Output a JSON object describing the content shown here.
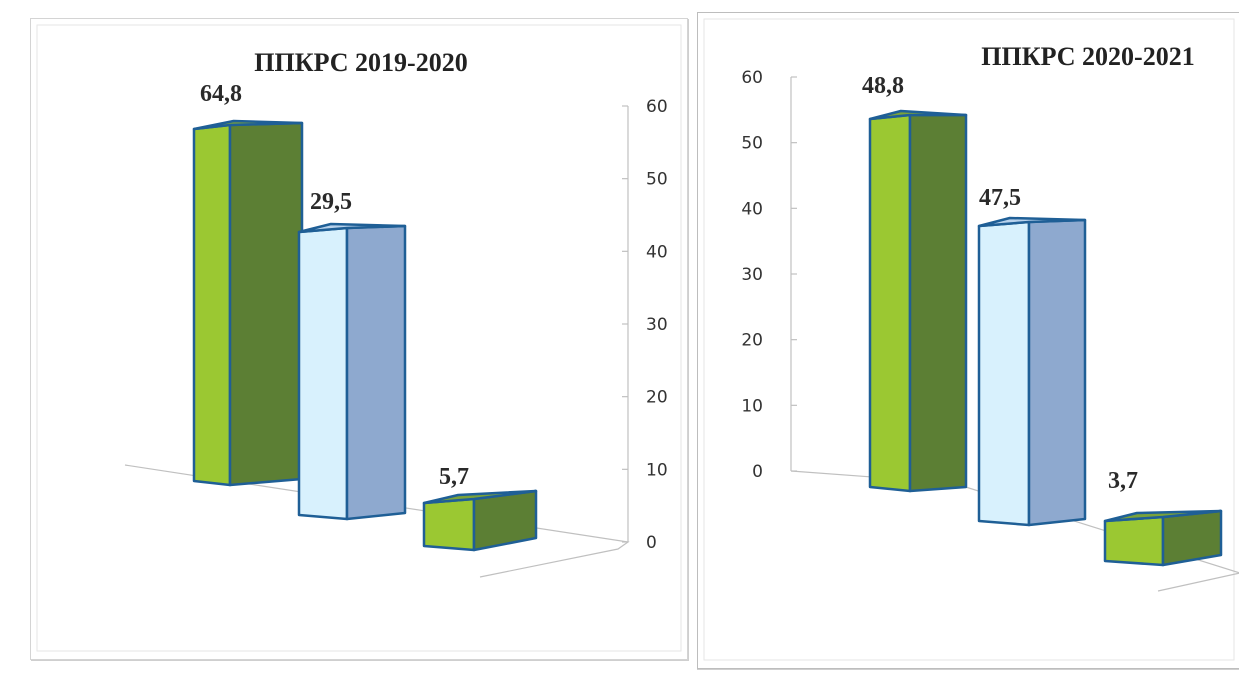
{
  "colors": {
    "green_front": "#9bc832",
    "green_side": "#5c7f34",
    "green_top": "#7aa23a",
    "blue_front": "#d8f1fd",
    "blue_side": "#8ea9cf",
    "blue_top": "#b8d2ec",
    "edge": "#1f5f96",
    "axis": "#c0c0c0"
  },
  "chart_data": [
    {
      "type": "bar",
      "title": "ППКРС 2019-2020",
      "values": [
        64.8,
        29.5,
        5.7
      ],
      "data_labels": [
        "64,8",
        "29,5",
        "5,7"
      ],
      "bar_colors": [
        "green",
        "blue",
        "green"
      ],
      "ylim": [
        0,
        60
      ],
      "yticks": [
        "0",
        "10",
        "20",
        "30",
        "40",
        "50",
        "60"
      ],
      "y_axis_side": "right",
      "projection": "3d",
      "grid": false,
      "legend": "none"
    },
    {
      "type": "bar",
      "title": "ППКРС 2020-2021",
      "values": [
        48.8,
        47.5,
        3.7
      ],
      "data_labels": [
        "48,8",
        "47,5",
        "3,7"
      ],
      "bar_colors": [
        "green",
        "blue",
        "green"
      ],
      "ylim": [
        0,
        60
      ],
      "yticks": [
        "0",
        "10",
        "20",
        "30",
        "40",
        "50",
        "60"
      ],
      "y_axis_side": "left",
      "projection": "3d",
      "grid": false,
      "legend": "none"
    }
  ]
}
